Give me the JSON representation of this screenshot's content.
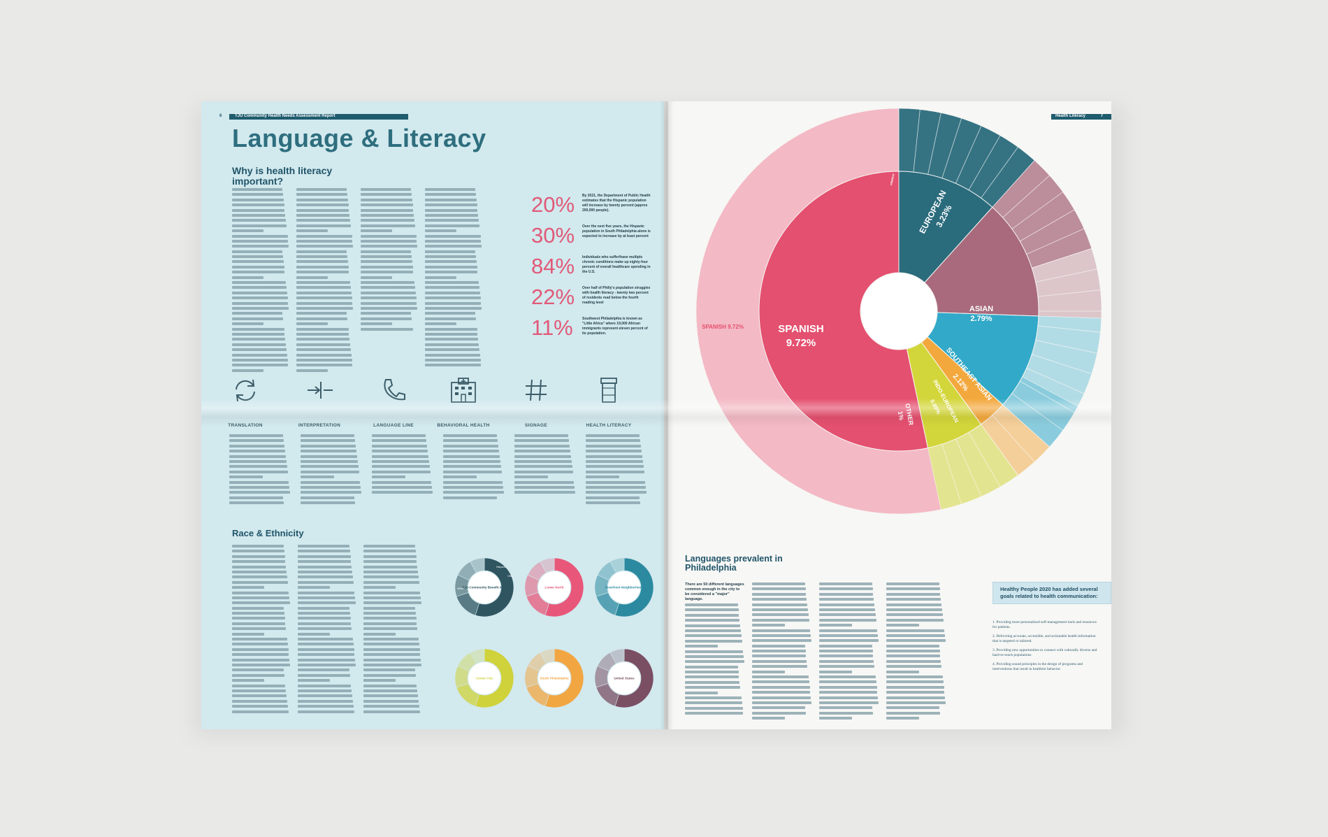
{
  "left_page": {
    "page_number": "6",
    "running_head": "TJU Community Health Needs Assessment Report",
    "title": "Language & Literacy",
    "section1_heading_line1": "Why is health literacy",
    "section1_heading_line2": "important?",
    "stats": [
      {
        "value": "20%",
        "note": "By 2021, the Department of Public Health estimates that the Hispanic population will increase by twenty percent (approx 200,000 people)."
      },
      {
        "value": "30%",
        "note": "Over the next five years, the Hispanic population in South Philadelphia alone is expected to increase by at least percent"
      },
      {
        "value": "84%",
        "note": "Individuals who suffer/have multiple chronic conditions make up eighty-four percent of overall healthcare spending in the U.S."
      },
      {
        "value": "22%",
        "note": "Over half of Philly's population struggles with health literacy - twenty two percent of residents read below the fourth reading level"
      },
      {
        "value": "11%",
        "note": "Southwest Philadelphia is known as \"Little Africa\" where 19,000 African immigrants represent eleven percent of its population."
      }
    ],
    "services": [
      {
        "label": "TRANSLATION",
        "icon": "refresh-arrows-icon"
      },
      {
        "label": "INTERPRETATION",
        "icon": "arrow-between-bars-icon"
      },
      {
        "label": "LANGUAGE LINE",
        "icon": "phone-icon"
      },
      {
        "label": "BEHAVIORAL HEALTH",
        "icon": "hospital-building-icon"
      },
      {
        "label": "SIGNAGE",
        "icon": "hashtag-icon"
      },
      {
        "label": "HEALTH LITERACY",
        "icon": "pill-bottle-icon"
      }
    ],
    "section2_heading": "Race & Ethnicity",
    "donuts": [
      {
        "label": "TJU Community Benefit Area",
        "color": "#2f5561"
      },
      {
        "label": "Lower North",
        "color": "#e8577a"
      },
      {
        "label": "Riverfront Neighborhood",
        "color": "#2c8aa0"
      },
      {
        "label": "Center City",
        "color": "#cfd23a"
      },
      {
        "label": "South Philadelphia",
        "color": "#f2a642"
      },
      {
        "label": "United States",
        "color": "#7a4f63"
      }
    ],
    "donut_small_labels": {
      "white": "White",
      "hispanic": "Hispanic",
      "other": "Other"
    }
  },
  "right_page": {
    "page_number": "7",
    "running_head": "Health Literacy",
    "section_heading_line1": "Languages prevalent in",
    "section_heading_line2": "Philadelphia",
    "lead_text": "There are 50 different languages common enough in the city to be considered a \"major\" language.",
    "callout": "Healthy People 2020 has added several goals related to health communication:",
    "goals": [
      "1. Providing more personalized self-management tools and resources for patients.",
      "2. Delivering accurate, accessible, and actionable health information that is targeted or tailored.",
      "3. Providing new opportunities to connect with culturally diverse and hard-to-reach populations",
      "4. Providing sound principles in the design of programs and interventions that result in healthier behavior."
    ],
    "chart_labels": {
      "spanish_name": "SPANISH",
      "spanish_value": "9.72%",
      "european_name": "EUROPEAN",
      "european_value": "3.23%",
      "asian_name": "ASIAN",
      "asian_value": "2.79%",
      "se_asian_name": "SOUTHEAST ASIAN",
      "se_asian_value": "2.12%",
      "indo_name": "INDO-EUROPEAN",
      "indo_value": "0.89%",
      "other_name": "OTHER",
      "other_value": "1%",
      "outer_spanish": "SPANISH 9.72%",
      "french": "FRENCH"
    },
    "colors": {
      "spanish": "#e4506f",
      "european": "#2a6b7c",
      "asian": "#a86a7c",
      "se_asian": "#32a9c8",
      "indo": "#f3a83d",
      "other": "#d3d63a",
      "outer_spanish": "#f3b9c4"
    }
  },
  "chart_data": {
    "type": "pie",
    "title": "Languages prevalent in Philadelphia",
    "inner_ring": [
      {
        "name": "SPANISH",
        "value": 9.72
      },
      {
        "name": "EUROPEAN",
        "value": 3.23
      },
      {
        "name": "ASIAN",
        "value": 2.79
      },
      {
        "name": "SOUTHEAST ASIAN",
        "value": 2.12
      },
      {
        "name": "INDO-EUROPEAN",
        "value": 0.89
      },
      {
        "name": "OTHER",
        "value": 1
      }
    ]
  }
}
